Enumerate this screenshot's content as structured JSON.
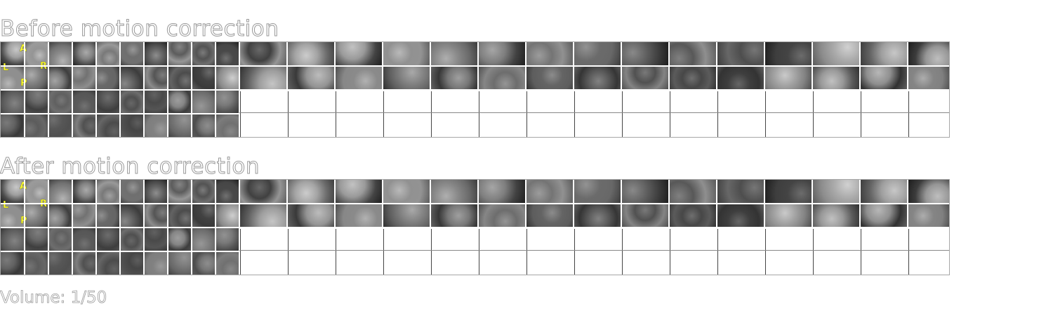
{
  "panels": [
    {
      "id": "before",
      "title": "Before motion correction",
      "orientation": {
        "anterior": "A",
        "posterior": "P",
        "left": "L",
        "right": "R"
      }
    },
    {
      "id": "after",
      "title": "After motion correction",
      "orientation": {
        "anterior": "A",
        "posterior": "P",
        "left": "L",
        "right": "R"
      }
    }
  ],
  "volume": {
    "label": "Volume:",
    "current": "1/50"
  },
  "colors": {
    "background": "#ffffff",
    "title_outline": "#9a9a9a",
    "orientation_marker": "#ffff33",
    "panel_border": "#a7a7a7"
  }
}
